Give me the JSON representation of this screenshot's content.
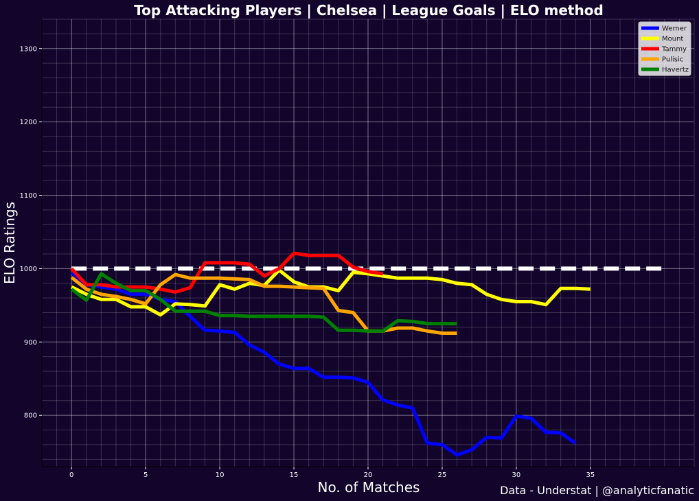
{
  "chart_data": {
    "type": "line",
    "title": "Top Attacking Players | Chelsea | League Goals | ELO method",
    "xlabel": "No. of Matches",
    "ylabel": "ELO Ratings",
    "credit": "Data - Understat | @analyticfanatic",
    "xlim": [
      -2,
      42
    ],
    "ylim": [
      730,
      1340
    ],
    "xticks": [
      0,
      5,
      10,
      15,
      20,
      25,
      30,
      35
    ],
    "yticks": [
      800,
      900,
      1000,
      1100,
      1200,
      1300
    ],
    "grid": true,
    "legend_position": "top-right",
    "baseline": {
      "y": 1000,
      "x_start": 0,
      "x_end": 40,
      "color": "#ffffff"
    },
    "series": [
      {
        "name": "Werner",
        "color": "#0000ff",
        "values": [
          995,
          978,
          975,
          972,
          965,
          965,
          958,
          955,
          935,
          916,
          915,
          913,
          896,
          886,
          870,
          864,
          864,
          852,
          852,
          851,
          845,
          821,
          814,
          810,
          762,
          760,
          746,
          753,
          770,
          769,
          799,
          796,
          777,
          776,
          762
        ]
      },
      {
        "name": "Mount",
        "color": "#ffff00",
        "values": [
          975,
          965,
          958,
          958,
          948,
          948,
          937,
          952,
          951,
          949,
          978,
          972,
          980,
          977,
          998,
          982,
          975,
          975,
          970,
          995,
          993,
          990,
          987,
          987,
          987,
          985,
          980,
          978,
          965,
          958,
          955,
          955,
          951,
          973,
          973,
          972
        ]
      },
      {
        "name": "Tammy",
        "color": "#ff0000",
        "values": [
          1000,
          978,
          978,
          975,
          975,
          975,
          972,
          968,
          974,
          1008,
          1008,
          1008,
          1006,
          990,
          1000,
          1021,
          1018,
          1018,
          1018,
          1002,
          996,
          993
        ]
      },
      {
        "name": "Pulisic",
        "color": "#ffa500",
        "values": [
          988,
          972,
          965,
          962,
          958,
          952,
          978,
          992,
          987,
          987,
          987,
          986,
          985,
          976,
          976,
          975,
          974,
          973,
          943,
          940,
          915,
          915,
          919,
          919,
          915,
          912,
          912
        ]
      },
      {
        "name": "Havertz",
        "color": "#008000",
        "values": [
          972,
          957,
          993,
          980,
          970,
          970,
          958,
          942,
          942,
          942,
          936,
          936,
          935,
          935,
          935,
          935,
          935,
          934,
          916,
          916,
          915,
          915,
          929,
          928,
          925,
          925,
          925
        ]
      }
    ]
  }
}
